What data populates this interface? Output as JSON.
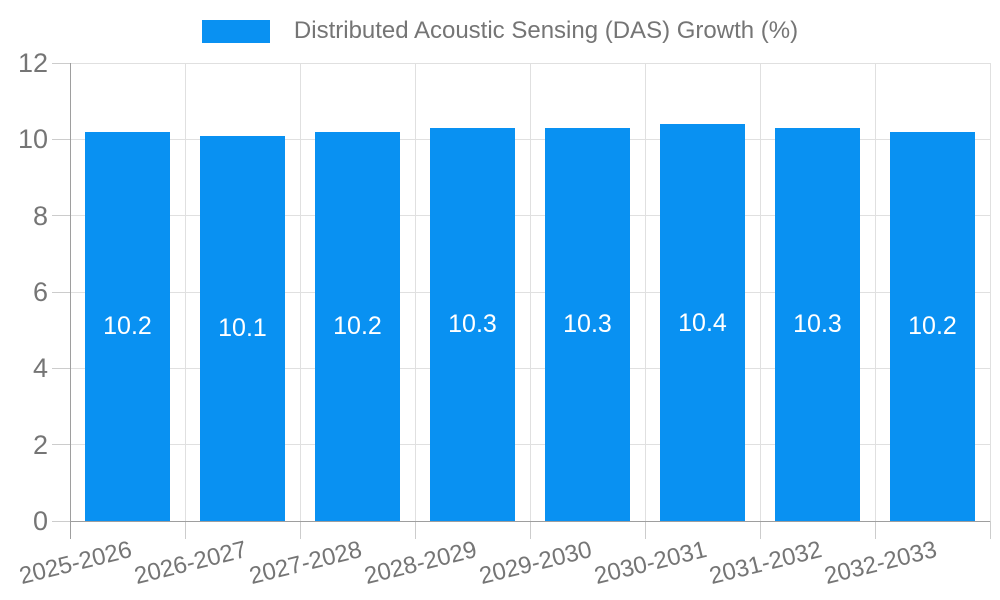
{
  "chart_data": {
    "type": "bar",
    "title": "Distributed Acoustic Sensing (DAS) Growth (%)",
    "categories": [
      "2025-2026",
      "2026-2027",
      "2027-2028",
      "2028-2029",
      "2029-2030",
      "2030-2031",
      "2031-2032",
      "2032-2033"
    ],
    "series": [
      {
        "name": "Distributed Acoustic Sensing (DAS) Growth (%)",
        "values": [
          10.2,
          10.1,
          10.2,
          10.3,
          10.3,
          10.4,
          10.3,
          10.2
        ]
      }
    ],
    "bar_labels": [
      "10.2",
      "10.1",
      "10.2",
      "10.3",
      "10.3",
      "10.4",
      "10.3",
      "10.2"
    ],
    "xlabel": "",
    "ylabel": "",
    "ylim": [
      0,
      12
    ],
    "yticks": [
      0,
      2,
      4,
      6,
      8,
      10,
      12
    ],
    "grid": true,
    "legend_position": "top",
    "x_label_rotation_deg": -14,
    "colors": {
      "bar": "#0991F2",
      "grid": "#e0e0e0",
      "axis": "#9e9e9e",
      "tick": "#cccccc",
      "text": "#757575",
      "bar_label": "#ffffff",
      "background": "#ffffff"
    }
  }
}
